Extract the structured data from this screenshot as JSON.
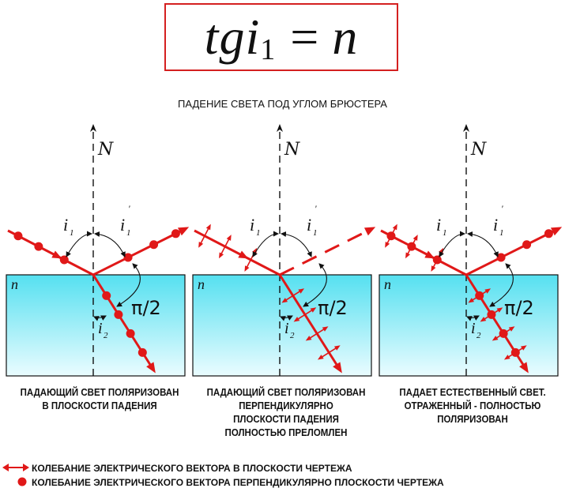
{
  "formula": {
    "main": "tgi",
    "sub": "1",
    "eq": "=",
    "rhs": "n"
  },
  "title": "ПАДЕНИЕ СВЕТА ПОД УГЛОМ БРЮСТЕРА",
  "labels": {
    "normal": "N",
    "medium": "n",
    "i1": "i",
    "i1_sub": "1",
    "i1p": "i",
    "i1p_sub": "1",
    "i1p_prime": "'",
    "i2": "i",
    "i2_sub": "2",
    "right_angle": "π/2"
  },
  "captions": [
    [
      "ПАДАЮЩИЙ СВЕТ ПОЛЯРИЗОВАН",
      "В ПЛОСКОСТИ ПАДЕНИЯ"
    ],
    [
      "ПАДАЮЩИЙ СВЕТ ПОЛЯРИЗОВАН",
      "ПЕРПЕНДИКУЛЯРНО",
      "ПЛОСКОСТИ ПАДЕНИЯ",
      "ПОЛНОСТЬЮ ПРЕЛОМЛЕН"
    ],
    [
      "ПАДАЕТ ЕСТЕСТВЕННЫЙ СВЕТ.",
      "ОТРАЖЕННЫЙ - ПОЛНОСТЬЮ",
      "ПОЛЯРИЗОВАН"
    ]
  ],
  "legend": {
    "arrows": "КОЛЕБАНИЕ ЭЛЕКТРИЧЕСКОГО ВЕКТОРА В ПЛОСКОСТИ ЧЕРТЕЖА",
    "dots": "КОЛЕБАНИЕ ЭЛЕКТРИЧЕСКОГО ВЕКТОРА ПЕРПЕНДИКУЛЯРНО ПЛОСКОСТИ ЧЕРТЕЖА"
  },
  "colors": {
    "ray": "#e01818",
    "medium_top": "#55e0f0",
    "medium_bottom": "#eafcff",
    "frame": "#d42020"
  }
}
